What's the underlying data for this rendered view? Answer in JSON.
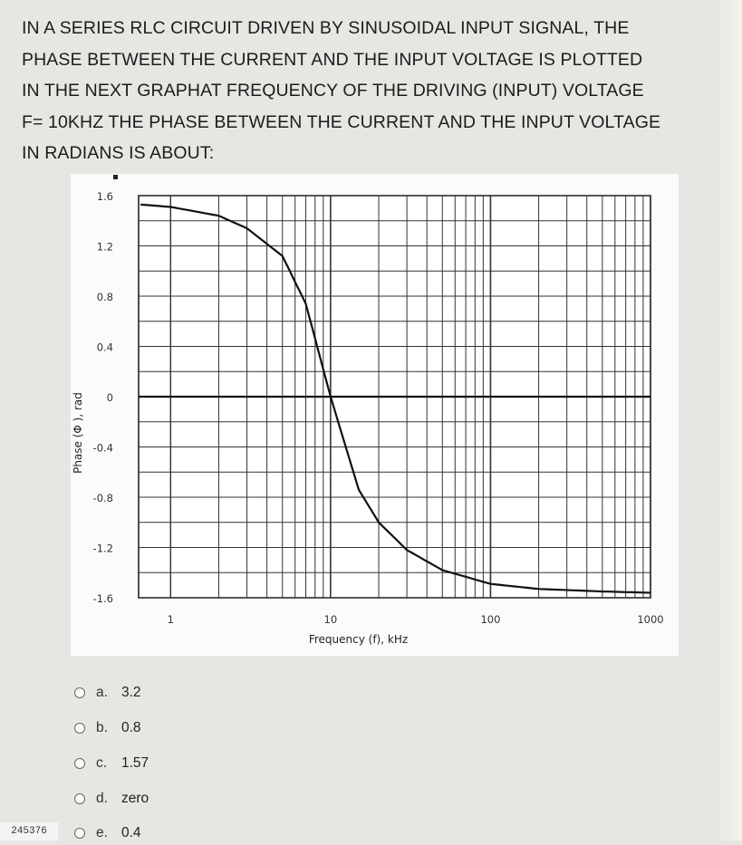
{
  "question": {
    "lines": [
      "IN A SERIES RLC CIRCUIT DRIVEN BY SINUSOIDAL INPUT SIGNAL, THE",
      "PHASE BETWEEN THE CURRENT AND THE INPUT VOLTAGE IS PLOTTED",
      "IN THE NEXT GRAPHAT FREQUENCY OF THE DRIVING (INPUT) VOLTAGE",
      "F= 10KHZ THE PHASE BETWEEN THE CURRENT AND THE INPUT VOLTAGE",
      "IN RADIANS IS ABOUT:"
    ]
  },
  "chart_data": {
    "type": "line",
    "xlabel": "Frequency (f), kHz",
    "ylabel": "Phase (Φ ), rad",
    "x_scale": "log",
    "xlim": [
      1,
      1000
    ],
    "ylim": [
      -1.6,
      1.6
    ],
    "x_ticks": [
      1,
      10,
      100,
      1000
    ],
    "x_tick_labels": [
      "1",
      "10",
      "100",
      "1000"
    ],
    "y_ticks": [
      1.6,
      1.2,
      0.8,
      0.4,
      0,
      -0.4,
      -0.8,
      -1.2,
      -1.6
    ],
    "y_tick_labels": [
      "1.6",
      "1.2",
      "0.8",
      "0.4",
      "0",
      "-0.4",
      "-0.8",
      "-1.2",
      "-1.6"
    ],
    "grid": true,
    "series": [
      {
        "x": [
          0.5,
          1,
          2,
          3,
          5,
          7,
          10,
          15,
          20,
          30,
          50,
          100,
          200,
          500,
          1000
        ],
        "y": [
          1.54,
          1.51,
          1.44,
          1.34,
          1.12,
          0.74,
          0.0,
          -0.74,
          -1.0,
          -1.22,
          -1.38,
          -1.49,
          -1.53,
          -1.55,
          -1.56
        ]
      }
    ]
  },
  "options": [
    {
      "letter": "a.",
      "value": "3.2"
    },
    {
      "letter": "b.",
      "value": "0.8"
    },
    {
      "letter": "c.",
      "value": "1.57"
    },
    {
      "letter": "d.",
      "value": "zero"
    },
    {
      "letter": "e.",
      "value": "0.4"
    }
  ],
  "page_id": "245376"
}
